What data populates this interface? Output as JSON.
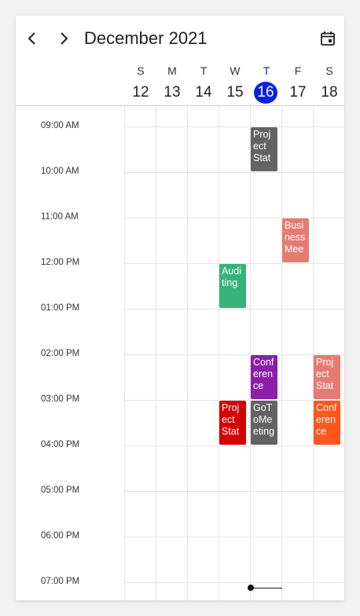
{
  "header": {
    "title": "December 2021",
    "prev_icon": "chevron-left-icon",
    "next_icon": "chevron-right-icon",
    "today_icon": "calendar-today-icon"
  },
  "week": {
    "days": [
      {
        "letter": "S",
        "date": "12",
        "today": false
      },
      {
        "letter": "M",
        "date": "13",
        "today": false
      },
      {
        "letter": "T",
        "date": "14",
        "today": false
      },
      {
        "letter": "W",
        "date": "15",
        "today": false
      },
      {
        "letter": "T",
        "date": "16",
        "today": true
      },
      {
        "letter": "F",
        "date": "17",
        "today": false
      },
      {
        "letter": "S",
        "date": "18",
        "today": false
      }
    ]
  },
  "timeline": {
    "times": [
      "09:00 AM",
      "10:00 AM",
      "11:00 AM",
      "12:00 PM",
      "01:00 PM",
      "02:00 PM",
      "03:00 PM",
      "04:00 PM",
      "05:00 PM",
      "06:00 PM",
      "07:00 PM"
    ]
  },
  "appointments": [
    {
      "subject": "Project Stat",
      "day": 4,
      "start": 9,
      "end": 10,
      "color": "#636363"
    },
    {
      "subject": "Business Mee",
      "day": 5,
      "start": 11,
      "end": 12,
      "color": "#e47c73"
    },
    {
      "subject": "Auditing",
      "day": 3,
      "start": 12,
      "end": 13,
      "color": "#36b37b"
    },
    {
      "subject": "Conference",
      "day": 4,
      "start": 14,
      "end": 15,
      "color": "#8b1fa9"
    },
    {
      "subject": "Project Stat",
      "day": 6,
      "start": 14,
      "end": 15,
      "color": "#e47c73"
    },
    {
      "subject": "Project Stat",
      "day": 3,
      "start": 15,
      "end": 16,
      "color": "#d20100"
    },
    {
      "subject": "GoToMeeting",
      "day": 4,
      "start": 15,
      "end": 16,
      "color": "#636363"
    },
    {
      "subject": "Conference",
      "day": 6,
      "start": 15,
      "end": 16,
      "color": "#fc571d"
    }
  ],
  "colors": {
    "today_accent": "#0b22d8",
    "now_indicator": "#111111"
  }
}
